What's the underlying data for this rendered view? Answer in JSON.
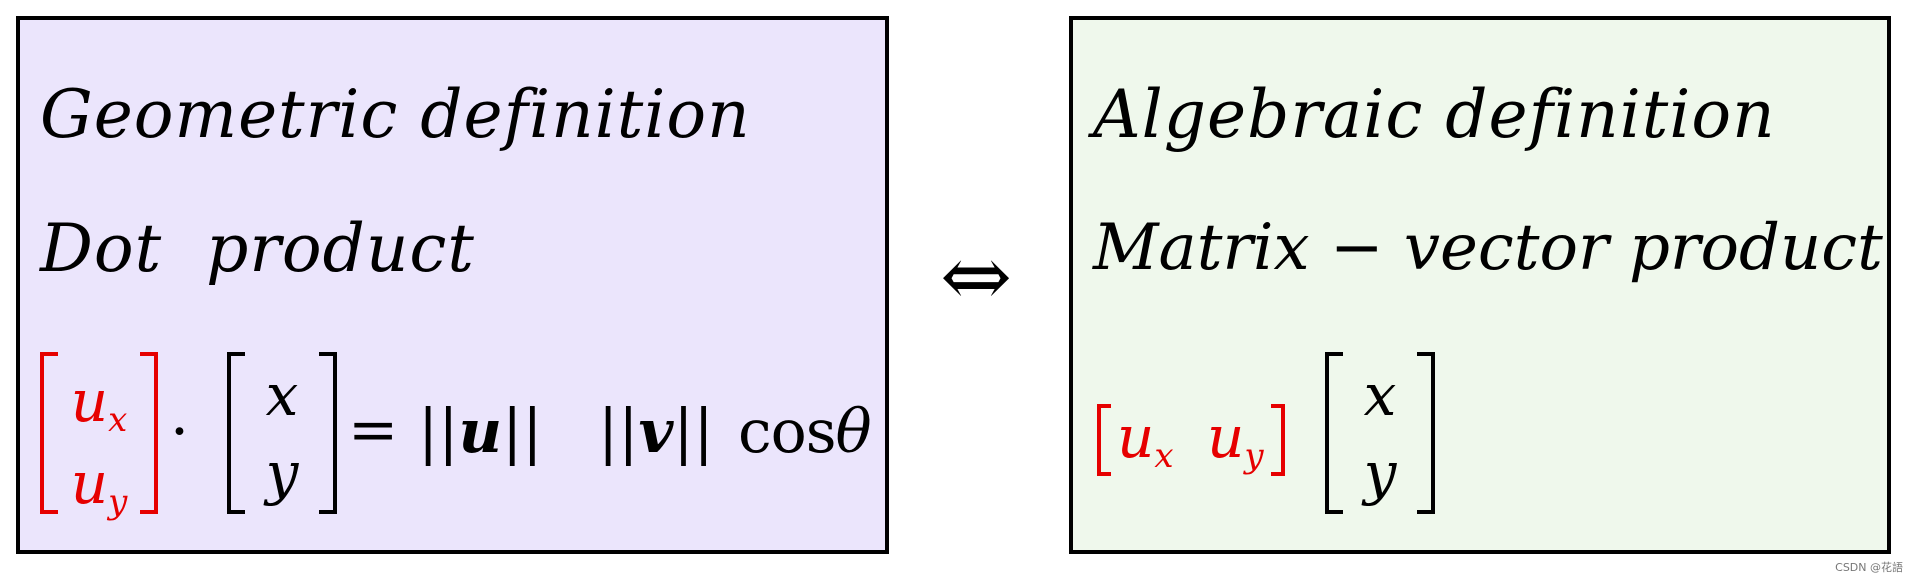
{
  "left": {
    "title": "Geometric definition",
    "subtitle": "Dot  product",
    "row_vector": {
      "top": "u",
      "top_sub": "x",
      "bottom": "u",
      "bottom_sub": "y"
    },
    "dot": "·",
    "col_vector": {
      "top": "x",
      "bottom": "y"
    },
    "equals": "=",
    "norm_bars": "||",
    "u": "u",
    "v": "v",
    "cos": "cos",
    "theta": "θ"
  },
  "arrow": "⇔",
  "right": {
    "title": "Algebraic definition",
    "subtitle": "Matrix − vector product",
    "row_vector": {
      "first": "u",
      "first_sub": "x",
      "second": "u",
      "second_sub": "y"
    },
    "col_vector": {
      "top": "x",
      "bottom": "y"
    }
  },
  "colors": {
    "left_panel_bg": "#ebe5fc",
    "right_panel_bg": "#eff8ec",
    "highlight": "#e60000",
    "border": "#000000"
  },
  "watermark": "CSDN @花語"
}
